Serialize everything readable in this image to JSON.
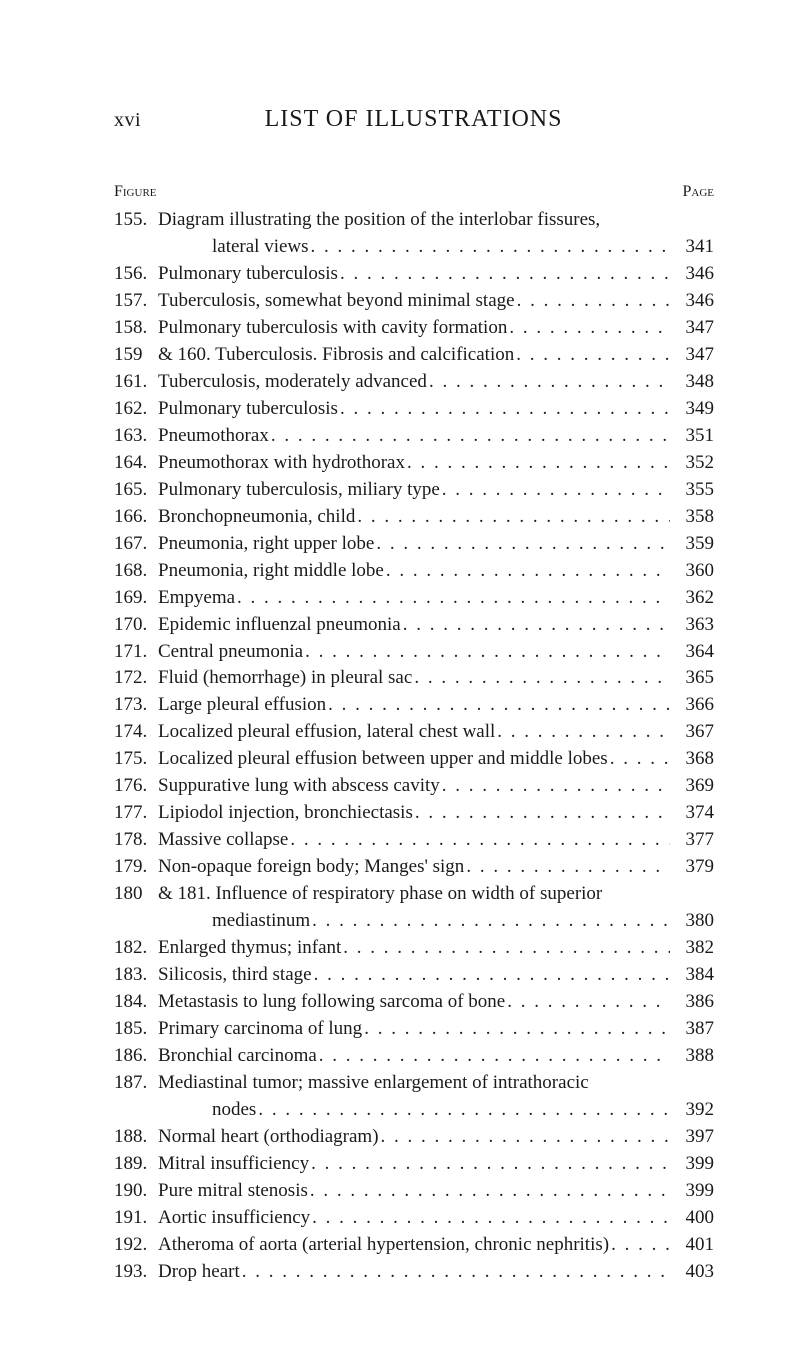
{
  "page_number_roman": "xvi",
  "header_title": "LIST OF ILLUSTRATIONS",
  "column_left": "Figure",
  "column_right": "Page",
  "entries": [
    {
      "num": "155.",
      "title": "Diagram illustrating the position of the interlobar fissures,",
      "page": "",
      "no_leaders": true
    },
    {
      "num": "",
      "title": "lateral views",
      "page": "341",
      "continuation": true
    },
    {
      "num": "156.",
      "title": "Pulmonary tuberculosis",
      "page": "346"
    },
    {
      "num": "157.",
      "title": "Tuberculosis, somewhat beyond minimal stage",
      "page": "346"
    },
    {
      "num": "158.",
      "title": "Pulmonary tuberculosis with cavity formation",
      "page": "347"
    },
    {
      "num": "159",
      "title": "& 160. Tuberculosis.  Fibrosis and calcification",
      "page": "347"
    },
    {
      "num": "161.",
      "title": "Tuberculosis, moderately advanced",
      "page": "348"
    },
    {
      "num": "162.",
      "title": "Pulmonary tuberculosis",
      "page": "349"
    },
    {
      "num": "163.",
      "title": "Pneumothorax",
      "page": "351"
    },
    {
      "num": "164.",
      "title": "Pneumothorax with hydrothorax",
      "page": "352"
    },
    {
      "num": "165.",
      "title": "Pulmonary tuberculosis, miliary type",
      "page": "355"
    },
    {
      "num": "166.",
      "title": "Bronchopneumonia, child",
      "page": "358"
    },
    {
      "num": "167.",
      "title": "Pneumonia, right upper lobe",
      "page": "359"
    },
    {
      "num": "168.",
      "title": "Pneumonia, right middle lobe",
      "page": "360"
    },
    {
      "num": "169.",
      "title": "Empyema",
      "page": "362"
    },
    {
      "num": "170.",
      "title": "Epidemic influenzal pneumonia",
      "page": "363"
    },
    {
      "num": "171.",
      "title": "Central pneumonia",
      "page": "364"
    },
    {
      "num": "172.",
      "title": "Fluid (hemorrhage) in pleural sac",
      "page": "365"
    },
    {
      "num": "173.",
      "title": "Large pleural effusion",
      "page": "366"
    },
    {
      "num": "174.",
      "title": "Localized pleural effusion, lateral chest wall",
      "page": "367"
    },
    {
      "num": "175.",
      "title": "Localized pleural effusion between upper and middle lobes",
      "page": "368",
      "tight": true
    },
    {
      "num": "176.",
      "title": "Suppurative lung with abscess cavity",
      "page": "369"
    },
    {
      "num": "177.",
      "title": "Lipiodol injection, bronchiectasis",
      "page": "374"
    },
    {
      "num": "178.",
      "title": "Massive collapse",
      "page": "377"
    },
    {
      "num": "179.",
      "title": "Non-opaque foreign body; Manges' sign",
      "page": "379"
    },
    {
      "num": "180",
      "title": "& 181. Influence of respiratory phase on width of superior",
      "page": "",
      "no_leaders": true
    },
    {
      "num": "",
      "title": "mediastinum",
      "page": "380",
      "continuation": true
    },
    {
      "num": "182.",
      "title": "Enlarged thymus; infant",
      "page": "382"
    },
    {
      "num": "183.",
      "title": "Silicosis, third stage",
      "page": "384"
    },
    {
      "num": "184.",
      "title": "Metastasis to lung following sarcoma of bone",
      "page": "386"
    },
    {
      "num": "185.",
      "title": "Primary carcinoma of lung",
      "page": "387"
    },
    {
      "num": "186.",
      "title": "Bronchial carcinoma",
      "page": "388"
    },
    {
      "num": "187.",
      "title": "Mediastinal tumor; massive enlargement of intrathoracic",
      "page": "",
      "no_leaders": true
    },
    {
      "num": "",
      "title": "nodes",
      "page": "392",
      "continuation": true
    },
    {
      "num": "188.",
      "title": "Normal heart (orthodiagram)",
      "page": "397"
    },
    {
      "num": "189.",
      "title": "Mitral insufficiency",
      "page": "399"
    },
    {
      "num": "190.",
      "title": "Pure mitral stenosis",
      "page": "399"
    },
    {
      "num": "191.",
      "title": "Aortic insufficiency",
      "page": "400"
    },
    {
      "num": "192.",
      "title": "Atheroma of aorta (arterial hypertension, chronic nephritis)",
      "page": "401"
    },
    {
      "num": "193.",
      "title": "Drop heart",
      "page": "403"
    }
  ]
}
